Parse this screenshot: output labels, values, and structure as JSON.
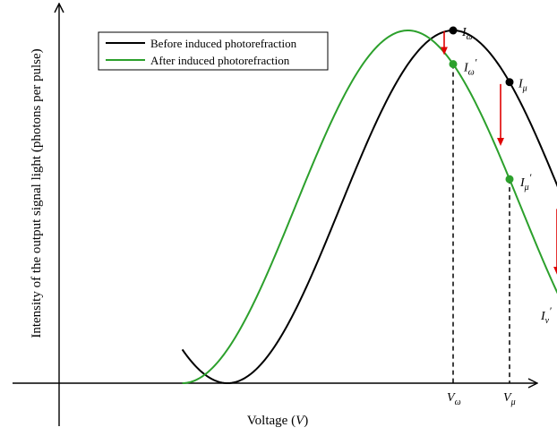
{
  "chart_data": {
    "type": "line",
    "ylabel": "Intensity of the output signal light (photons per pulse)",
    "xlabel_text": "Voltage (",
    "xlabel_var": "V",
    "xlabel_close": ")",
    "grid": false,
    "legend_position": "top-left",
    "colors": {
      "before": "#000000",
      "after": "#2ca02c",
      "arrow": "#e00000",
      "guide": "#000000"
    },
    "series": [
      {
        "key": "before",
        "name": "Before induced photorefraction",
        "x_min": -0.4,
        "x_max": 4.0,
        "amplitude": 1.0,
        "offset": 1.0,
        "phase": 0.0
      },
      {
        "key": "after",
        "name": "After induced photorefraction",
        "x_min": -0.4,
        "x_max": 4.0,
        "amplitude": 1.0,
        "offset": 1.0,
        "phase": -0.4
      }
    ],
    "points": [
      {
        "key": "omega",
        "sub": "ω",
        "x": 2.0,
        "label_before": "I",
        "label_after": "I"
      },
      {
        "key": "mu",
        "sub": "μ",
        "x": 2.5,
        "label_before": "I",
        "label_after": "I"
      },
      {
        "key": "nu",
        "sub": "ν",
        "x": 3.0,
        "label_before": "I",
        "label_after": "I"
      }
    ],
    "ticks": [
      {
        "key": "omega",
        "main": "V",
        "sub": "ω",
        "x": 2.0
      },
      {
        "key": "mu",
        "main": "V",
        "sub": "μ",
        "x": 2.5
      },
      {
        "key": "nu",
        "main": "V",
        "sub": "ν",
        "x": 3.0
      }
    ],
    "prime": "′",
    "xlim": [
      -0.4,
      4.0
    ],
    "ylim": [
      0,
      2.1
    ]
  }
}
